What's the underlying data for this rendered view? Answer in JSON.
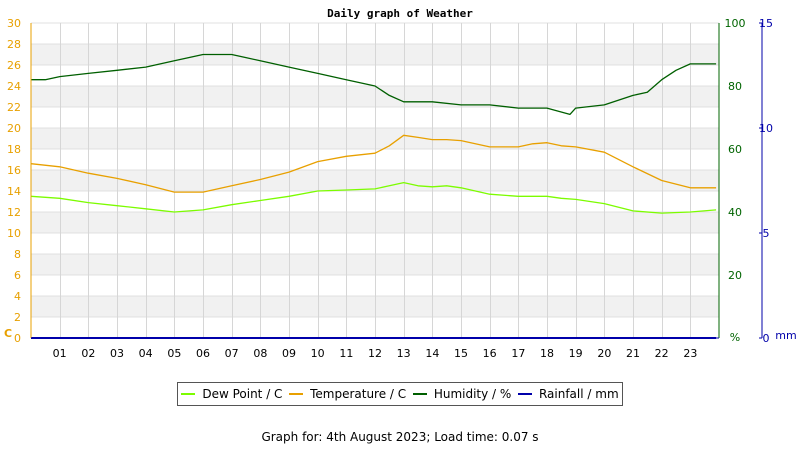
{
  "chart_data": {
    "type": "line",
    "title": "Daily graph of Weather",
    "x_tick_labels": [
      "01",
      "02",
      "03",
      "04",
      "05",
      "06",
      "07",
      "08",
      "09",
      "10",
      "11",
      "12",
      "13",
      "14",
      "15",
      "16",
      "17",
      "18",
      "19",
      "20",
      "21",
      "22",
      "23"
    ],
    "x_range_hours": [
      0,
      24
    ],
    "axes": {
      "left": {
        "unit_label": "C",
        "range": [
          0,
          30
        ],
        "ticks": [
          0,
          2,
          4,
          6,
          8,
          10,
          12,
          14,
          16,
          18,
          20,
          22,
          24,
          26,
          28,
          30
        ],
        "color": "#e8a000"
      },
      "right_humidity": {
        "unit_label": "%",
        "range": [
          0,
          100
        ],
        "ticks": [
          0,
          20,
          40,
          60,
          80,
          100
        ],
        "color": "#006400"
      },
      "right_rainfall": {
        "unit_label": "mm",
        "range": [
          0,
          15
        ],
        "ticks": [
          0,
          5,
          10,
          15
        ],
        "color": "#0000aa"
      }
    },
    "grid": true,
    "legend_position": "bottom",
    "series": [
      {
        "name": "Dew Point / C",
        "axis": "left",
        "color": "#7cfc00",
        "x": [
          0,
          1,
          2,
          3,
          4,
          5,
          6,
          7,
          8,
          9,
          10,
          11,
          12,
          12.5,
          13,
          13.5,
          14,
          14.5,
          15,
          16,
          17,
          17.5,
          18,
          18.5,
          19,
          20,
          21,
          22,
          23,
          23.9
        ],
        "y": [
          13.5,
          13.3,
          12.9,
          12.6,
          12.3,
          12.0,
          12.2,
          12.7,
          13.1,
          13.5,
          14.0,
          14.1,
          14.2,
          14.5,
          14.8,
          14.5,
          14.4,
          14.5,
          14.3,
          13.7,
          13.5,
          13.5,
          13.5,
          13.3,
          13.2,
          12.8,
          12.1,
          11.9,
          12.0,
          12.2
        ]
      },
      {
        "name": "Temperature / C",
        "axis": "left",
        "color": "#e8a000",
        "x": [
          0,
          1,
          2,
          3,
          4,
          5,
          6,
          7,
          8,
          9,
          10,
          11,
          12,
          12.5,
          13,
          13.5,
          14,
          14.5,
          15,
          16,
          17,
          17.5,
          18,
          18.5,
          19,
          20,
          21,
          22,
          23,
          23.9
        ],
        "y": [
          16.6,
          16.3,
          15.7,
          15.2,
          14.6,
          13.9,
          13.9,
          14.5,
          15.1,
          15.8,
          16.8,
          17.3,
          17.6,
          18.3,
          19.3,
          19.1,
          18.9,
          18.9,
          18.8,
          18.2,
          18.2,
          18.5,
          18.6,
          18.3,
          18.2,
          17.7,
          16.3,
          15.0,
          14.3,
          14.3
        ]
      },
      {
        "name": "Humidity / %",
        "axis": "right_humidity",
        "color": "#005f00",
        "x": [
          0,
          0.5,
          1,
          2,
          3,
          4,
          5,
          5.5,
          6,
          7,
          7.5,
          8,
          9,
          10,
          11,
          12,
          12.5,
          13,
          14,
          15,
          16,
          17,
          18,
          18.8,
          19,
          20,
          21,
          21.5,
          22,
          22.5,
          23,
          23.9
        ],
        "y": [
          82,
          82,
          83,
          84,
          85,
          86,
          88,
          89,
          90,
          90,
          89,
          88,
          86,
          84,
          82,
          80,
          77,
          75,
          75,
          74,
          74,
          73,
          73,
          71,
          73,
          74,
          77,
          78,
          82,
          85,
          87,
          87
        ]
      },
      {
        "name": "Rainfall / mm",
        "axis": "right_rainfall",
        "color": "#0000aa",
        "x": [
          0,
          23.9
        ],
        "y": [
          0,
          0
        ]
      }
    ]
  },
  "footer": {
    "text": "Graph for: 4th August 2023; Load time: 0.07 s"
  }
}
